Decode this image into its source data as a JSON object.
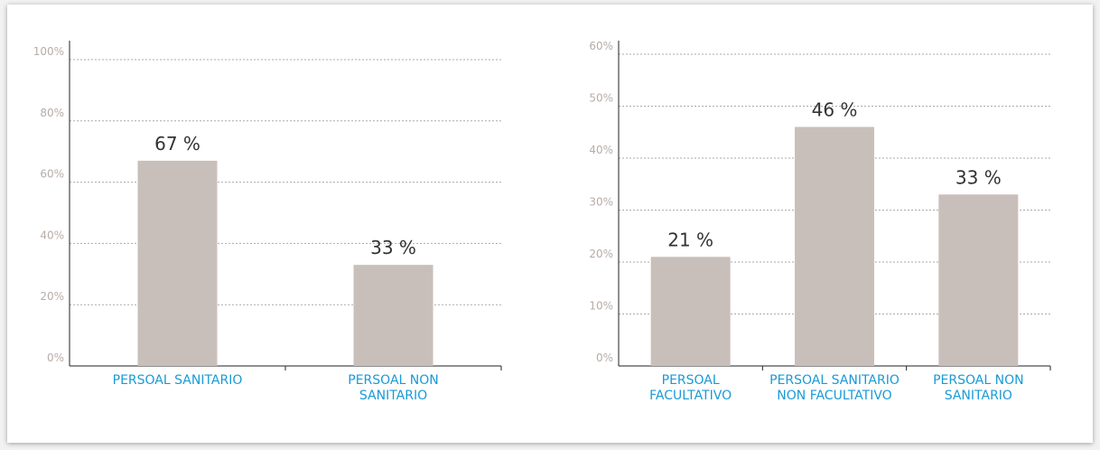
{
  "chart_data": [
    {
      "type": "bar",
      "categories": [
        "PERSOAL SANITARIO",
        "PERSOAL NON SANITARIO"
      ],
      "values": [
        67,
        33
      ],
      "value_labels": [
        "67 %",
        "33 %"
      ],
      "color": "#c9bfba",
      "ylim": [
        0,
        100
      ],
      "yticks": [
        {
          "value": 0,
          "label": "0%"
        },
        {
          "value": 20,
          "label": "20%"
        },
        {
          "value": 40,
          "label": "40%"
        },
        {
          "value": 60,
          "label": "60%"
        },
        {
          "value": 80,
          "label": "80%"
        },
        {
          "value": 100,
          "label": "100%"
        }
      ],
      "grid": true
    },
    {
      "type": "bar",
      "categories": [
        "PERSOAL FACULTATIVO",
        "PERSOAL SANITARIO NON FACULTATIVO",
        "PERSOAL NON SANITARIO"
      ],
      "values": [
        21,
        46,
        33
      ],
      "value_labels": [
        "21 %",
        "46 %",
        "33 %"
      ],
      "color": "#c9bfba",
      "ylim": [
        0,
        60
      ],
      "yticks": [
        {
          "value": 0,
          "label": "0%"
        },
        {
          "value": 10,
          "label": "10%"
        },
        {
          "value": 20,
          "label": "20%"
        },
        {
          "value": 30,
          "label": "30%"
        },
        {
          "value": 40,
          "label": "40%"
        },
        {
          "value": 50,
          "label": "50%"
        },
        {
          "value": 60,
          "label": "60%"
        }
      ],
      "grid": true
    }
  ]
}
